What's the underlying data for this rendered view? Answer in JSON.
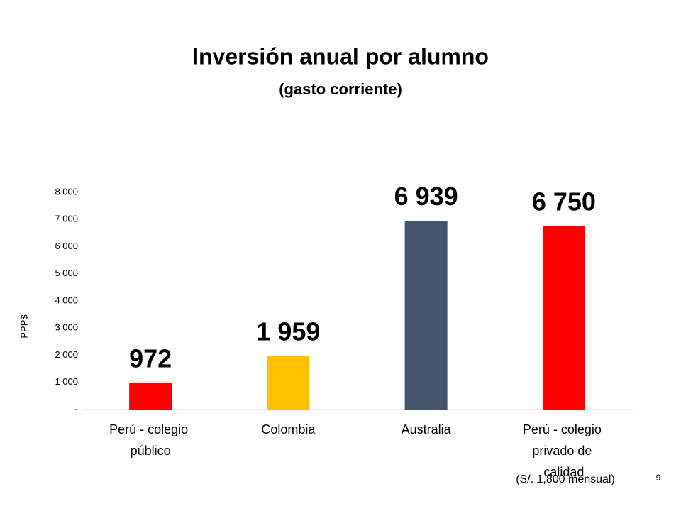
{
  "chart_data": {
    "type": "bar",
    "title": "Inversión anual por alumno",
    "subtitle": "(gasto corriente)",
    "ylabel": "PPP$",
    "categories": [
      "Perú - colegio público",
      "Colombia",
      "Australia",
      "Perú - colegio privado de calidad"
    ],
    "values": [
      972,
      1959,
      6939,
      6750
    ],
    "value_labels": [
      "972",
      "1 959",
      "6 939",
      "6 750"
    ],
    "colors": [
      "#ff0000",
      "#ffc000",
      "#44546a",
      "#ff0000"
    ],
    "ylim": [
      0,
      8000
    ],
    "yticks": [
      {
        "value": 0,
        "label": "-"
      },
      {
        "value": 1000,
        "label": "1 000"
      },
      {
        "value": 2000,
        "label": "2 000"
      },
      {
        "value": 3000,
        "label": "3 000"
      },
      {
        "value": 4000,
        "label": "4 000"
      },
      {
        "value": 5000,
        "label": "5 000"
      },
      {
        "value": 6000,
        "label": "6 000"
      },
      {
        "value": 7000,
        "label": "7 000"
      },
      {
        "value": 8000,
        "label": "8 000"
      }
    ],
    "grid": false,
    "annotation": "(S/. 1,800 mensual)",
    "page_number": "9"
  }
}
